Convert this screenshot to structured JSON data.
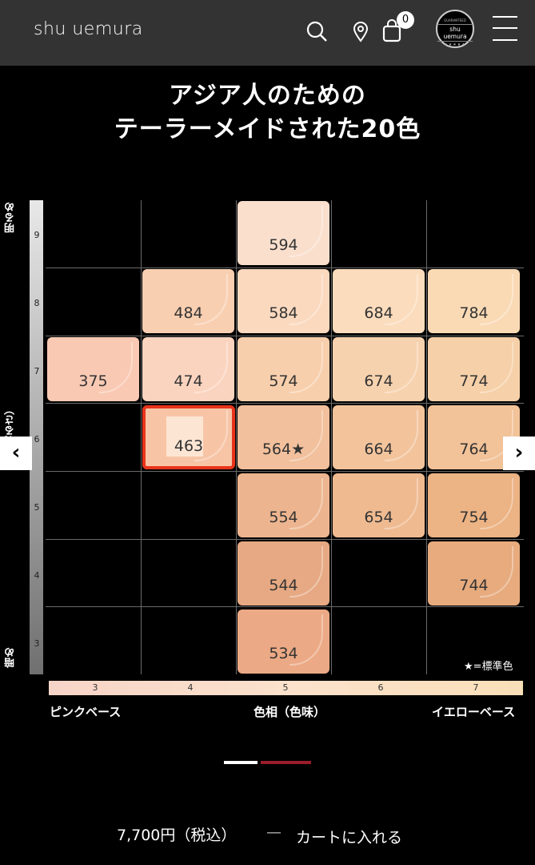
{
  "header": {
    "brand": "shu uemura",
    "cart_count": "0",
    "seal_top": "GUARANTEED",
    "seal_brand": "shu uemura",
    "seal_stars": "★★★★★"
  },
  "headline": {
    "line1": "アジア人のための",
    "line2": "テーラーメイドされた20色"
  },
  "chart": {
    "axis_top": "明るめ",
    "axis_middle": "明（明るさ）",
    "axis_bottom": "暗め",
    "brightness_levels": [
      "9",
      "8",
      "7",
      "6",
      "5",
      "4",
      "3"
    ],
    "hue_levels": [
      "3",
      "4",
      "5",
      "6",
      "7"
    ],
    "hue_label_left": "ピンクベース",
    "hue_label_center": "色相（色味）",
    "hue_label_right": "イエローベース",
    "note": "★=標準色",
    "shades": {
      "s594": "594",
      "s484": "484",
      "s584": "584",
      "s684": "684",
      "s784": "784",
      "s375": "375",
      "s474": "474",
      "s574": "574",
      "s674": "674",
      "s774": "774",
      "s463": "463",
      "s564": "564★",
      "s664": "664",
      "s764": "764",
      "s554": "554",
      "s654": "654",
      "s754": "754",
      "s544": "544",
      "s744": "744",
      "s534": "534"
    },
    "selected_shade": "463",
    "highlight_color": "#e8341b"
  },
  "nav": {
    "prev": "‹",
    "next": "›"
  },
  "footer": {
    "price": "7,700円（税込）",
    "separator": "—",
    "cart_label": "カートに入れる"
  }
}
